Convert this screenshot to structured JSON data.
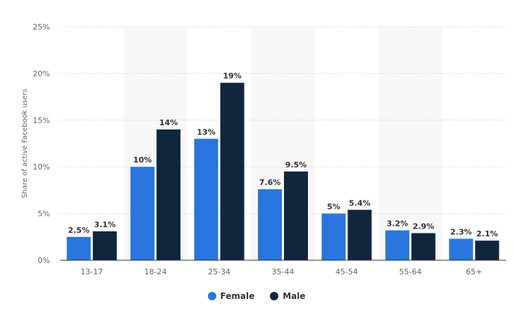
{
  "chart_data": {
    "type": "bar",
    "ylabel": "Share of active Facebook users",
    "ylim": [
      0,
      25
    ],
    "ytick_labels": [
      "0%",
      "5%",
      "10%",
      "15%",
      "20%",
      "25%"
    ],
    "categories": [
      "13-17",
      "18-24",
      "25-34",
      "35-44",
      "45-54",
      "55-64",
      "65+"
    ],
    "series": [
      {
        "name": "Female",
        "color": "#2876dd",
        "values": [
          2.5,
          10,
          13,
          7.6,
          5,
          3.2,
          2.3
        ],
        "labels": [
          "2.5%",
          "10%",
          "13%",
          "7.6%",
          "5%",
          "3.2%",
          "2.3%"
        ]
      },
      {
        "name": "Male",
        "color": "#10263e",
        "values": [
          3.1,
          14,
          19,
          9.5,
          5.4,
          2.9,
          2.1
        ],
        "labels": [
          "3.1%",
          "14%",
          "19%",
          "9.5%",
          "5.4%",
          "2.9%",
          "2.1%"
        ]
      }
    ],
    "grid": true,
    "legend_position": "bottom-center"
  }
}
